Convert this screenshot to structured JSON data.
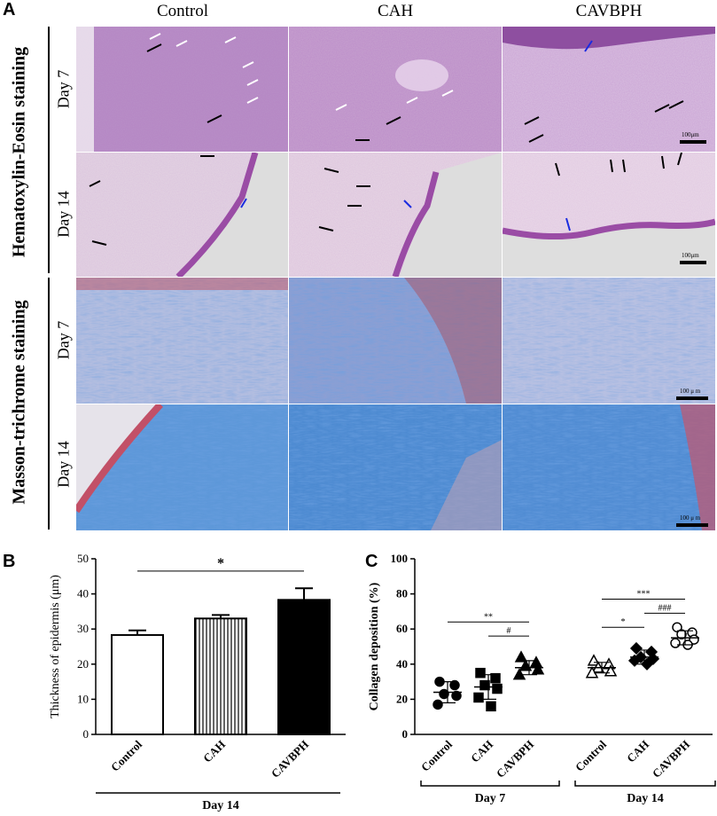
{
  "panel_a": {
    "letter": "A",
    "columns": [
      "Control",
      "CAH",
      "CAVBPH"
    ],
    "sections": [
      "Hematoxylin-Eosin staining",
      "Masson-trichrome staining"
    ],
    "days": [
      "Day 7",
      "Day 14",
      "Day 7",
      "Day 14"
    ],
    "scale_bar_label": "100μm",
    "scale_bar_label_mt": "100 μ m"
  },
  "chart_data": [
    {
      "panel": "B",
      "type": "bar",
      "categories": [
        "Control",
        "CAH",
        "CAVBPH"
      ],
      "values": [
        28.3,
        33.0,
        38.3
      ],
      "errors": [
        1.3,
        1.0,
        3.3
      ],
      "ylabel": "Thickness of epidermis (μm)",
      "ylim": [
        0,
        50
      ],
      "yticks": [
        "0",
        "10",
        "20",
        "30",
        "40",
        "50"
      ],
      "group_label": "Day 14",
      "significance": [
        {
          "from": "Control",
          "to": "CAVBPH",
          "label": "*"
        }
      ]
    },
    {
      "panel": "C",
      "type": "scatter",
      "ylabel": "Collagen deposition (%)",
      "ylim": [
        0,
        100
      ],
      "yticks": [
        "0",
        "20",
        "40",
        "60",
        "80",
        "100"
      ],
      "groups": [
        {
          "label": "Day 7",
          "categories": [
            "Control",
            "CAH",
            "CAVBPH"
          ]
        },
        {
          "label": "Day 14",
          "categories": [
            "Control",
            "CAH",
            "CAVBPH"
          ]
        }
      ],
      "series": [
        {
          "category": "Control",
          "group": "Day 7",
          "mean": 24,
          "sd": 6,
          "points": [
            30,
            28,
            23,
            22,
            17
          ]
        },
        {
          "category": "CAH",
          "group": "Day 7",
          "mean": 27,
          "sd": 7,
          "points": [
            35,
            32,
            28,
            26,
            21,
            16
          ]
        },
        {
          "category": "CAVBPH",
          "group": "Day 7",
          "mean": 38,
          "sd": 4,
          "points": [
            44,
            41,
            39,
            37,
            34
          ]
        },
        {
          "category": "Control",
          "group": "Day 14",
          "mean": 38,
          "sd": 3,
          "points": [
            42,
            40,
            38,
            36,
            35
          ]
        },
        {
          "category": "CAH",
          "group": "Day 14",
          "mean": 44,
          "sd": 4,
          "points": [
            49,
            47,
            44,
            43,
            42,
            40
          ]
        },
        {
          "category": "CAVBPH",
          "group": "Day 14",
          "mean": 55,
          "sd": 4,
          "points": [
            61,
            58,
            57,
            54,
            52,
            51
          ]
        }
      ],
      "significance": [
        {
          "group": "Day 7",
          "from": "Control",
          "to": "CAVBPH",
          "label": "**",
          "y": 64
        },
        {
          "group": "Day 7",
          "from": "CAH",
          "to": "CAVBPH",
          "label": "#",
          "y": 56
        },
        {
          "group": "Day 14",
          "from": "Control",
          "to": "CAVBPH",
          "label": "***",
          "y": 77
        },
        {
          "group": "Day 14",
          "from": "Control",
          "to": "CAH",
          "label": "*",
          "y": 61
        },
        {
          "group": "Day 14",
          "from": "CAH",
          "to": "CAVBPH",
          "label": "###",
          "y": 69
        }
      ]
    }
  ],
  "letters": {
    "b": "B",
    "c": "C"
  }
}
